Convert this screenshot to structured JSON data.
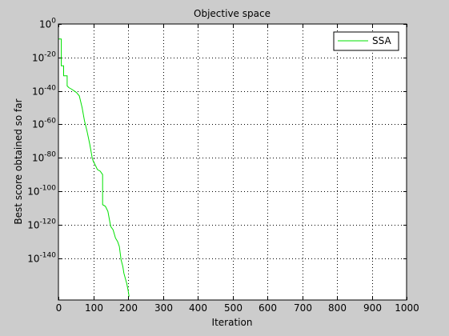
{
  "chart_data": {
    "type": "line",
    "title": "Objective space",
    "xlabel": "Iteration",
    "ylabel": "Best score obtained so far",
    "xlim": [
      0,
      1000
    ],
    "ylim_log10": [
      -165,
      0
    ],
    "y_scale": "log",
    "grid": true,
    "legend_position": "top-right",
    "x_ticks": [
      0,
      100,
      200,
      300,
      400,
      500,
      600,
      700,
      800,
      900,
      1000
    ],
    "y_tick_exponents": [
      0,
      -20,
      -40,
      -60,
      -80,
      -100,
      -120,
      -140
    ],
    "y_tick_base": "10",
    "series": [
      {
        "name": "SSA",
        "color": "#00e000",
        "x": [
          1,
          8,
          8,
          15,
          15,
          25,
          25,
          30,
          38,
          45,
          52,
          60,
          68,
          75,
          82,
          90,
          97,
          100,
          105,
          112,
          120,
          127,
          127,
          135,
          142,
          150,
          157,
          164,
          170,
          175,
          180,
          185,
          188,
          192,
          196,
          200,
          203
        ],
        "y_log10": [
          -9,
          -9,
          -25,
          -25,
          -31,
          -31,
          -37,
          -38,
          -39,
          -40,
          -41,
          -43,
          -50,
          -58,
          -64,
          -72,
          -80,
          -82,
          -84,
          -87,
          -88,
          -90,
          -108,
          -109,
          -112,
          -121,
          -123,
          -128,
          -130,
          -133,
          -141,
          -145,
          -149,
          -152,
          -155,
          -159,
          -163
        ]
      }
    ]
  }
}
